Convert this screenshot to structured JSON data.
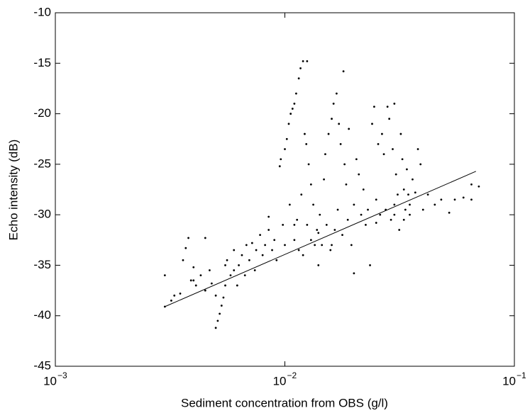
{
  "chart_data": {
    "type": "scatter",
    "xlabel": "Sediment concentration from OBS (g/l)",
    "ylabel": "Echo intensity (dB)",
    "xscale": "log",
    "xlim": [
      0.001,
      0.1
    ],
    "ylim": [
      -45,
      -10
    ],
    "xticks": [
      {
        "value": 0.001,
        "label": "10",
        "exponent": "−3"
      },
      {
        "value": 0.01,
        "label": "10",
        "exponent": "−2"
      },
      {
        "value": 0.1,
        "label": "10",
        "exponent": "−1"
      }
    ],
    "yticks": [
      -45,
      -40,
      -35,
      -30,
      -25,
      -20,
      -15,
      -10
    ],
    "grid": false,
    "color": "#000000",
    "x": [
      0.003,
      0.003,
      0.0032,
      0.0033,
      0.0035,
      0.0036,
      0.0037,
      0.0038,
      0.0039,
      0.004,
      0.0041,
      0.0043,
      0.0045,
      0.0045,
      0.0047,
      0.0048,
      0.005,
      0.005,
      0.0051,
      0.0052,
      0.0053,
      0.0054,
      0.0055,
      0.0055,
      0.0056,
      0.0058,
      0.006,
      0.006,
      0.0062,
      0.0063,
      0.0065,
      0.0067,
      0.0068,
      0.007,
      0.0072,
      0.0074,
      0.0075,
      0.0078,
      0.008,
      0.0082,
      0.0085,
      0.0088,
      0.009,
      0.0092,
      0.0095,
      0.0096,
      0.0098,
      0.01,
      0.01,
      0.0102,
      0.0104,
      0.0105,
      0.0106,
      0.0108,
      0.011,
      0.011,
      0.0112,
      0.0113,
      0.0115,
      0.0115,
      0.0117,
      0.0118,
      0.012,
      0.012,
      0.0122,
      0.0124,
      0.0125,
      0.0125,
      0.0127,
      0.013,
      0.013,
      0.0133,
      0.0135,
      0.0138,
      0.014,
      0.0142,
      0.0145,
      0.0148,
      0.015,
      0.0152,
      0.0155,
      0.0158,
      0.016,
      0.0163,
      0.0165,
      0.0168,
      0.017,
      0.0172,
      0.0175,
      0.0178,
      0.018,
      0.0182,
      0.0185,
      0.0188,
      0.019,
      0.0195,
      0.02,
      0.02,
      0.0205,
      0.021,
      0.0215,
      0.022,
      0.0225,
      0.023,
      0.0235,
      0.024,
      0.0245,
      0.025,
      0.0255,
      0.026,
      0.0265,
      0.027,
      0.0275,
      0.028,
      0.0285,
      0.029,
      0.0295,
      0.03,
      0.03,
      0.0305,
      0.031,
      0.0315,
      0.032,
      0.0325,
      0.033,
      0.0335,
      0.034,
      0.0345,
      0.035,
      0.036,
      0.037,
      0.038,
      0.039,
      0.04,
      0.042,
      0.045,
      0.048,
      0.052,
      0.055,
      0.06,
      0.065,
      0.065,
      0.07,
      0.004,
      0.0085,
      0.011,
      0.014,
      0.016,
      0.025,
      0.03,
      0.033,
      0.035
    ],
    "y": [
      -36.0,
      -39.1,
      -38.5,
      -38.0,
      -37.8,
      -34.5,
      -33.3,
      -32.3,
      -36.5,
      -36.5,
      -37.0,
      -36.0,
      -37.5,
      -32.3,
      -35.5,
      -36.8,
      -38.0,
      -41.2,
      -40.5,
      -39.8,
      -39.0,
      -38.2,
      -37.0,
      -35.0,
      -34.5,
      -36.0,
      -35.5,
      -33.5,
      -37.0,
      -35.0,
      -34.0,
      -36.0,
      -33.0,
      -34.5,
      -32.8,
      -35.5,
      -33.5,
      -32.0,
      -34.0,
      -33.0,
      -31.5,
      -33.5,
      -32.5,
      -34.5,
      -25.2,
      -24.5,
      -31.0,
      -23.5,
      -33.0,
      -22.5,
      -21.0,
      -29.0,
      -20.0,
      -19.5,
      -19.0,
      -32.5,
      -18.0,
      -30.5,
      -16.5,
      -33.5,
      -15.5,
      -28.0,
      -14.8,
      -34.0,
      -22.0,
      -23.0,
      -14.8,
      -31.0,
      -25.0,
      -27.0,
      -32.5,
      -29.0,
      -33.0,
      -31.5,
      -35.0,
      -30.0,
      -33.0,
      -26.5,
      -24.0,
      -31.0,
      -22.0,
      -33.5,
      -20.5,
      -19.0,
      -31.5,
      -18.0,
      -29.5,
      -21.0,
      -23.0,
      -32.0,
      -15.8,
      -25.0,
      -27.0,
      -30.5,
      -21.5,
      -33.0,
      -29.0,
      -35.8,
      -24.5,
      -26.0,
      -30.0,
      -27.5,
      -31.0,
      -29.5,
      -35.0,
      -21.0,
      -19.3,
      -28.5,
      -23.0,
      -30.0,
      -22.0,
      -24.0,
      -29.5,
      -19.3,
      -20.5,
      -30.5,
      -23.5,
      -19.0,
      -29.0,
      -26.0,
      -28.0,
      -31.5,
      -22.0,
      -24.5,
      -27.5,
      -29.5,
      -25.5,
      -28.0,
      -30.0,
      -26.5,
      -27.8,
      -23.5,
      -25.0,
      -29.5,
      -28.0,
      -29.0,
      -28.5,
      -29.8,
      -28.5,
      -28.3,
      -28.5,
      -27.0,
      -27.2,
      -35.2,
      -30.2,
      -31.0,
      -31.8,
      -33.0,
      -30.8,
      -30.0,
      -30.5,
      -29.0
    ],
    "fit_line": {
      "x": [
        0.003,
        0.068
      ],
      "y": [
        -39.1,
        -25.7
      ],
      "color": "#000000"
    }
  }
}
